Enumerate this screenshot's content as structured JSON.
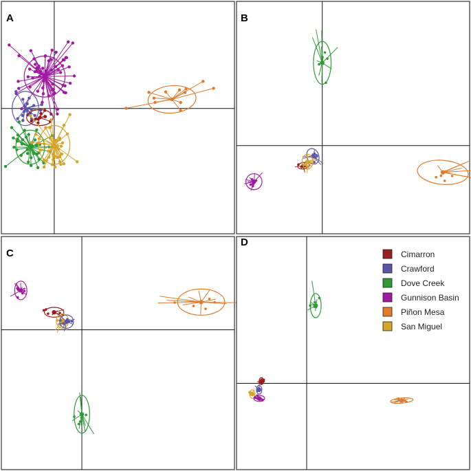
{
  "figure": {
    "panel_labels": [
      "A",
      "B",
      "C",
      "D"
    ]
  },
  "legend": {
    "entries": [
      {
        "name": "Cimarron",
        "color": "#9b1c1c"
      },
      {
        "name": "Crawford",
        "color": "#5a55a8"
      },
      {
        "name": "Dove Creek",
        "color": "#2e9a35"
      },
      {
        "name": "Gunnison Basin",
        "color": "#a01aa0"
      },
      {
        "name": "Piñon Mesa",
        "color": "#e07b2e"
      },
      {
        "name": "San Miguel",
        "color": "#d4a52a"
      }
    ]
  },
  "chart_data": [
    {
      "type": "scatter",
      "panel": "A",
      "title": "",
      "xlabel": "",
      "ylabel": "",
      "xlim": [
        -2.2,
        7.5
      ],
      "ylim": [
        -5.5,
        4.7
      ],
      "grid": false,
      "style": "points",
      "series": [
        {
          "name": "Gunnison Basin",
          "color": "#a01aa0",
          "centroid": [
            -0.4,
            1.4
          ],
          "ellipse": {
            "rx": 0.85,
            "ry": 0.9,
            "angle": 0
          },
          "spread": [
            1.2,
            1.3
          ],
          "n": 60
        },
        {
          "name": "Crawford",
          "color": "#5a55a8",
          "centroid": [
            -1.2,
            0
          ],
          "ellipse": {
            "rx": 0.55,
            "ry": 0.75,
            "angle": 0
          },
          "spread": [
            0.6,
            0.6
          ],
          "n": 18
        },
        {
          "name": "Cimarron",
          "color": "#9b1c1c",
          "centroid": [
            -0.6,
            -0.4
          ],
          "ellipse": {
            "rx": 0.55,
            "ry": 0.35,
            "angle": 0
          },
          "spread": [
            0.45,
            0.25
          ],
          "n": 10
        },
        {
          "name": "Dove Creek",
          "color": "#2e9a35",
          "centroid": [
            -1.0,
            -1.7
          ],
          "ellipse": {
            "rx": 0.6,
            "ry": 0.75,
            "angle": 0
          },
          "spread": [
            0.85,
            0.9
          ],
          "n": 38
        },
        {
          "name": "San Miguel",
          "color": "#d4a52a",
          "centroid": [
            0,
            -1.6
          ],
          "ellipse": {
            "rx": 0.65,
            "ry": 0.85,
            "angle": 0
          },
          "spread": [
            0.95,
            1.0
          ],
          "n": 42
        },
        {
          "name": "Piñon Mesa",
          "color": "#e07b2e",
          "centroid": [
            4.9,
            0.4
          ],
          "ellipse": {
            "rx": 1.0,
            "ry": 0.6,
            "angle": -5
          },
          "spread": [
            1.6,
            0.6
          ],
          "n": 12
        }
      ]
    },
    {
      "type": "scatter",
      "panel": "B",
      "title": "",
      "xlabel": "",
      "ylabel": "",
      "xlim": [
        -3.2,
        5.5
      ],
      "ylim": [
        -3.3,
        5.4
      ],
      "grid": false,
      "style": "star",
      "series": [
        {
          "name": "Dove Creek",
          "color": "#2e9a35",
          "centroid": [
            0,
            3.1
          ],
          "ellipse": {
            "rx": 0.33,
            "ry": 0.8,
            "angle": 0
          },
          "spread": [
            0.4,
            1.1
          ],
          "n": 12
        },
        {
          "name": "Crawford",
          "color": "#5a55a8",
          "centroid": [
            -0.35,
            -0.4
          ],
          "ellipse": {
            "rx": 0.22,
            "ry": 0.3,
            "angle": -20
          },
          "spread": [
            0.35,
            0.35
          ],
          "n": 10
        },
        {
          "name": "Cimarron",
          "color": "#9b1c1c",
          "centroid": [
            -0.7,
            -0.75
          ],
          "ellipse": {
            "rx": 0.22,
            "ry": 0.12,
            "angle": -10
          },
          "spread": [
            0.25,
            0.15
          ],
          "n": 8
        },
        {
          "name": "San Miguel",
          "color": "#d4a52a",
          "centroid": [
            -0.55,
            -0.6
          ],
          "ellipse": {
            "rx": 0.2,
            "ry": 0.28,
            "angle": 0
          },
          "spread": [
            0.3,
            0.45
          ],
          "n": 10
        },
        {
          "name": "Gunnison Basin",
          "color": "#a01aa0",
          "centroid": [
            -2.55,
            -1.35
          ],
          "ellipse": {
            "rx": 0.3,
            "ry": 0.3,
            "angle": 0
          },
          "spread": [
            0.3,
            0.35
          ],
          "n": 10
        },
        {
          "name": "Piñon Mesa",
          "color": "#e07b2e",
          "centroid": [
            4.5,
            -1.0
          ],
          "ellipse": {
            "rx": 0.95,
            "ry": 0.45,
            "angle": 5
          },
          "spread": [
            1.6,
            0.45
          ],
          "n": 12
        }
      ]
    },
    {
      "type": "scatter",
      "panel": "C",
      "title": "",
      "xlabel": "",
      "ylabel": "",
      "xlim": [
        -2.9,
        5.5
      ],
      "ylim": [
        -4.8,
        3.2
      ],
      "grid": false,
      "style": "star",
      "series": [
        {
          "name": "Gunnison Basin",
          "color": "#a01aa0",
          "centroid": [
            -2.2,
            1.35
          ],
          "ellipse": {
            "rx": 0.22,
            "ry": 0.32,
            "angle": 0
          },
          "spread": [
            0.3,
            0.35
          ],
          "n": 10
        },
        {
          "name": "Cimarron",
          "color": "#9b1c1c",
          "centroid": [
            -1.0,
            0.6
          ],
          "ellipse": {
            "rx": 0.35,
            "ry": 0.17,
            "angle": 0
          },
          "spread": [
            0.35,
            0.15
          ],
          "n": 8
        },
        {
          "name": "San Miguel",
          "color": "#d4a52a",
          "centroid": [
            -0.7,
            0.3
          ],
          "ellipse": {
            "rx": 0.22,
            "ry": 0.25,
            "angle": 0
          },
          "spread": [
            0.3,
            0.4
          ],
          "n": 10
        },
        {
          "name": "Crawford",
          "color": "#5a55a8",
          "centroid": [
            -0.55,
            0.28
          ],
          "ellipse": {
            "rx": 0.25,
            "ry": 0.23,
            "angle": 0
          },
          "spread": [
            0.5,
            0.3
          ],
          "n": 10
        },
        {
          "name": "Dove Creek",
          "color": "#2e9a35",
          "centroid": [
            0,
            -2.9
          ],
          "ellipse": {
            "rx": 0.28,
            "ry": 0.65,
            "angle": 0
          },
          "spread": [
            0.4,
            0.8
          ],
          "n": 12
        },
        {
          "name": "Piñon Mesa",
          "color": "#e07b2e",
          "centroid": [
            4.3,
            0.95
          ],
          "ellipse": {
            "rx": 0.85,
            "ry": 0.45,
            "angle": 0
          },
          "spread": [
            1.9,
            0.4
          ],
          "n": 12
        }
      ]
    },
    {
      "type": "scatter",
      "panel": "D",
      "title": "",
      "xlabel": "",
      "ylabel": "",
      "xlim": [
        -1.55,
        3.6
      ],
      "ylim": [
        -2.0,
        3.4
      ],
      "grid": false,
      "style": "star",
      "series": [
        {
          "name": "Dove Creek",
          "color": "#2e9a35",
          "centroid": [
            0.2,
            1.8
          ],
          "ellipse": {
            "rx": 0.12,
            "ry": 0.28,
            "angle": 0
          },
          "spread": [
            0.18,
            0.35
          ],
          "n": 10
        },
        {
          "name": "Cimarron",
          "color": "#9b1c1c",
          "centroid": [
            -1.0,
            0.05
          ],
          "ellipse": {
            "rx": 0.05,
            "ry": 0.08,
            "angle": 0
          },
          "spread": [
            0.06,
            0.1
          ],
          "n": 8
        },
        {
          "name": "Crawford",
          "color": "#5a55a8",
          "centroid": [
            -1.05,
            -0.15
          ],
          "ellipse": {
            "rx": 0.06,
            "ry": 0.1,
            "angle": 0
          },
          "spread": [
            0.1,
            0.12
          ],
          "n": 8
        },
        {
          "name": "San Miguel",
          "color": "#d4a52a",
          "centroid": [
            -1.2,
            -0.25
          ],
          "ellipse": {
            "rx": 0.06,
            "ry": 0.1,
            "angle": 0
          },
          "spread": [
            0.08,
            0.12
          ],
          "n": 8
        },
        {
          "name": "Gunnison Basin",
          "color": "#a01aa0",
          "centroid": [
            -1.05,
            -0.35
          ],
          "ellipse": {
            "rx": 0.12,
            "ry": 0.07,
            "angle": 0
          },
          "spread": [
            0.15,
            0.08
          ],
          "n": 8
        },
        {
          "name": "Piñon Mesa",
          "color": "#e07b2e",
          "centroid": [
            2.1,
            -0.4
          ],
          "ellipse": {
            "rx": 0.25,
            "ry": 0.06,
            "angle": -5
          },
          "spread": [
            0.25,
            0.05
          ],
          "n": 10
        }
      ]
    }
  ]
}
